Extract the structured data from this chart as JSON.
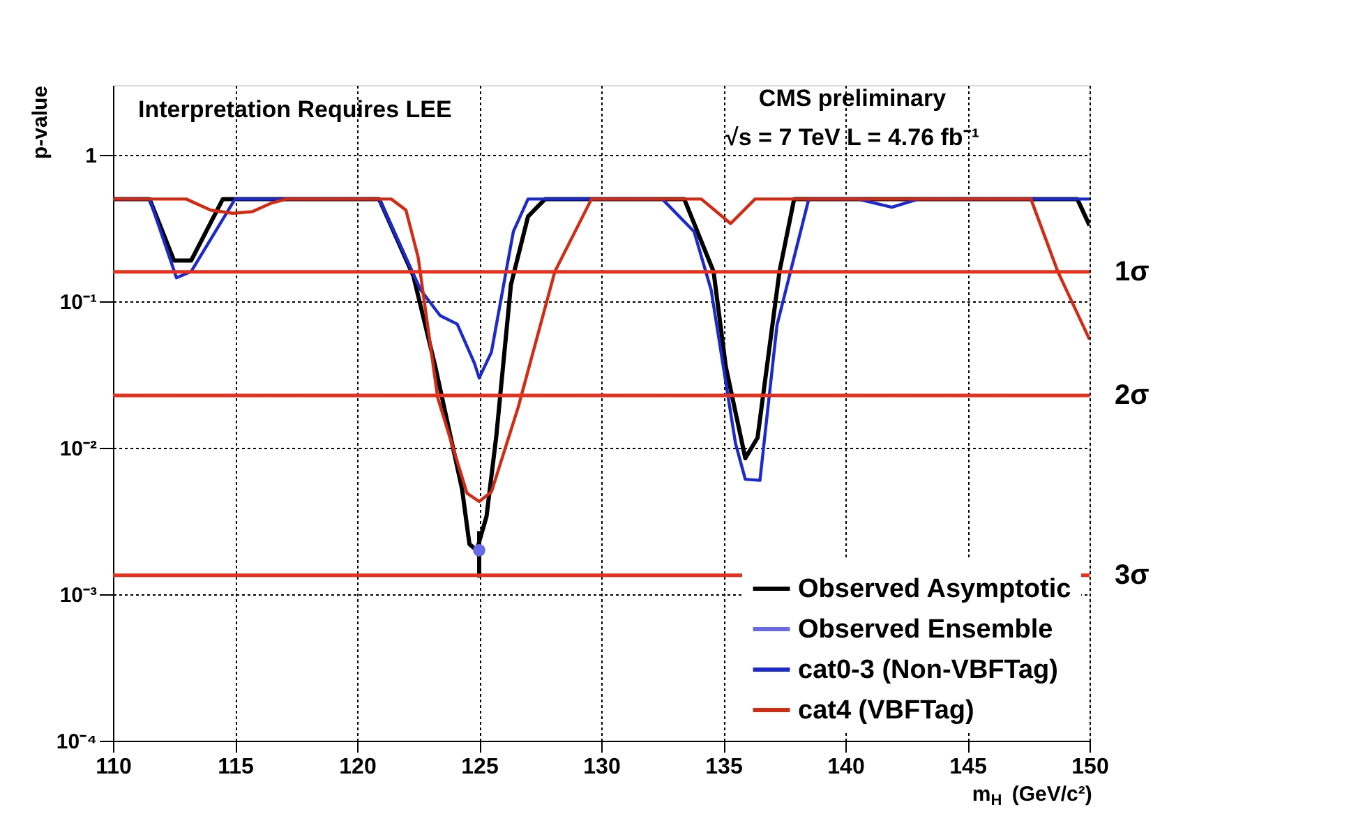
{
  "chart_data": {
    "type": "line",
    "xlabel": "m$_{H}$ (GeV/c²)",
    "ylabel": "p-value",
    "annotations": [
      "Interpretation Requires LEE",
      "CMS preliminary",
      "√s = 7 TeV L = 4.76 fb⁻¹"
    ],
    "xlim": [
      110,
      150
    ],
    "xticks": [
      110,
      115,
      120,
      125,
      130,
      135,
      140,
      145,
      150
    ],
    "ylim": [
      0.0001,
      3
    ],
    "yticks": [
      {
        "value": 0.0001,
        "label": "10⁻⁴"
      },
      {
        "value": 0.001,
        "label": "10⁻³"
      },
      {
        "value": 0.01,
        "label": "10⁻²"
      },
      {
        "value": 0.1,
        "label": "10⁻¹"
      },
      1
    ],
    "log": true,
    "grid": true,
    "legend": "bottom right",
    "series": [
      {
        "name": "Observed Asymptotic",
        "color": "#000000",
        "x": [
          110,
          111.5,
          112.5,
          113.2,
          114.5,
          120.9,
          122.3,
          123.2,
          124.3,
          124.6,
          124.9,
          125.3,
          125.7,
          126.3,
          127,
          127.7,
          133.4,
          134.6,
          135.1,
          135.9,
          136.4,
          137.3,
          137.9,
          149.5,
          150
        ],
        "values": [
          0.5,
          0.5,
          0.19,
          0.19,
          0.5,
          0.5,
          0.15,
          0.036,
          0.0052,
          0.0022,
          0.002,
          0.0034,
          0.012,
          0.13,
          0.38,
          0.5,
          0.5,
          0.16,
          0.036,
          0.0085,
          0.0117,
          0.16,
          0.5,
          0.5,
          0.33
        ]
      },
      {
        "name": "Observed Ensemble",
        "type": "scatter",
        "marker": "circle",
        "color": "#6a6ae8",
        "x": [
          125
        ],
        "values": [
          0.002
        ],
        "errors": [
          [
            0.0013,
            0.0027
          ]
        ]
      },
      {
        "name": "cat0-3 (Non-VBFTag)",
        "color": "#1a2ad0",
        "x": [
          110,
          111.5,
          112.6,
          113.2,
          115,
          120.9,
          122.6,
          123.4,
          124.1,
          124.8,
          125,
          125.5,
          126.1,
          126.4,
          127,
          132.5,
          133.8,
          134.5,
          135.5,
          135.9,
          136.5,
          137.2,
          138.5,
          140.5,
          141.9,
          143,
          150
        ],
        "values": [
          0.5,
          0.5,
          0.145,
          0.16,
          0.5,
          0.5,
          0.12,
          0.08,
          0.07,
          0.038,
          0.03,
          0.045,
          0.16,
          0.3,
          0.5,
          0.5,
          0.3,
          0.12,
          0.0107,
          0.0061,
          0.006,
          0.069,
          0.5,
          0.5,
          0.44,
          0.5,
          0.5
        ]
      },
      {
        "name": "cat4 (VBFTag)",
        "color": "#d42a10",
        "x": [
          110,
          113,
          114,
          114.9,
          115.7,
          116.5,
          117.1,
          121.4,
          122,
          122.5,
          123.3,
          124.5,
          125,
          125.5,
          126.6,
          128.1,
          129.6,
          134.1,
          135.3,
          136.3,
          147.6,
          148.7,
          150
        ],
        "values": [
          0.5,
          0.5,
          0.42,
          0.4,
          0.41,
          0.47,
          0.5,
          0.5,
          0.42,
          0.2,
          0.022,
          0.0049,
          0.0043,
          0.005,
          0.019,
          0.16,
          0.5,
          0.5,
          0.34,
          0.5,
          0.5,
          0.16,
          0.055
        ]
      }
    ],
    "ref_lines": [
      {
        "axis": "y",
        "value": 0.159,
        "label": "1σ",
        "color": "#e8301c"
      },
      {
        "axis": "y",
        "value": 0.0228,
        "label": "2σ",
        "color": "#e8301c"
      },
      {
        "axis": "y",
        "value": 0.00135,
        "label": "3σ",
        "color": "#e8301c"
      }
    ]
  }
}
